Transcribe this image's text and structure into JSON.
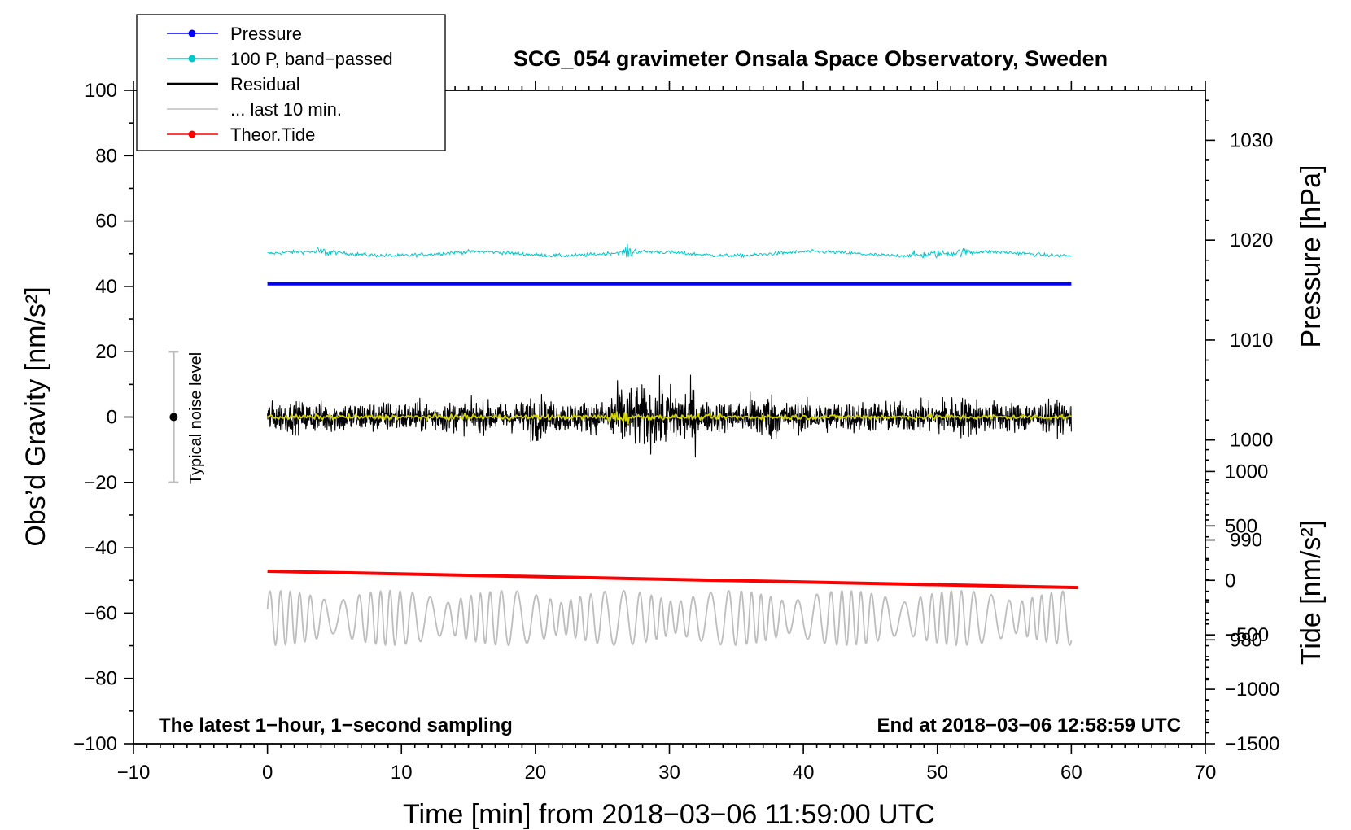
{
  "chart_data": {
    "type": "line",
    "title": "SCG_054 gravimeter Onsala Space Observatory, Sweden",
    "xlabel": "Time [min] from 2018−03−06 11:59:00 UTC",
    "ylabel_left": "Obs’d Gravity [nm/s²]",
    "ylabel_right_top": "Pressure [hPa]",
    "ylabel_right_bottom": "Tide [nm/s²]",
    "xlim": [
      -10,
      70
    ],
    "ylim": [
      -100,
      100
    ],
    "pressure_axis_range": [
      969.6,
      1035
    ],
    "tide_axis_range": [
      -1500,
      4500
    ],
    "x_ticks": [
      "−10",
      "0",
      "10",
      "20",
      "30",
      "40",
      "50",
      "60",
      "70"
    ],
    "x_tick_values": [
      -10,
      0,
      10,
      20,
      30,
      40,
      50,
      60,
      70
    ],
    "y_ticks": [
      "100",
      "80",
      "60",
      "40",
      "20",
      "0",
      "−20",
      "−40",
      "−60",
      "−80",
      "−100"
    ],
    "y_tick_values": [
      100,
      80,
      60,
      40,
      20,
      0,
      -20,
      -40,
      -60,
      -80,
      -100
    ],
    "pressure_ticks": [
      "1030",
      "1020",
      "1010",
      "1000",
      "990",
      "980"
    ],
    "pressure_tick_values": [
      1030,
      1020,
      1010,
      1000,
      990,
      980
    ],
    "tide_ticks": [
      "1000",
      "500",
      "0",
      "−500",
      "−1000",
      "−1500"
    ],
    "tide_tick_values": [
      1000,
      500,
      0,
      -500,
      -1000,
      -1500
    ],
    "legend": [
      {
        "label": "Pressure",
        "color": "#0000ff",
        "marker": true
      },
      {
        "label": "100 P, band−passed",
        "color": "#00c8c8",
        "marker": true
      },
      {
        "label": "Residual",
        "color": "#000000",
        "marker": false
      },
      {
        "label": "... last 10 min.",
        "color": "#bdbdbd",
        "marker": false
      },
      {
        "label": "Theor.Tide",
        "color": "#ff0000",
        "marker": true
      }
    ],
    "series": [
      {
        "name": "Pressure",
        "color": "#0000ff",
        "x": [
          0,
          60
        ],
        "y": [
          40.8,
          40.8
        ]
      },
      {
        "name": "100 P, band-passed",
        "color": "#00c8c8",
        "x": [
          0,
          60
        ],
        "y": [
          50,
          50
        ],
        "noise": "small oscillation about 50"
      },
      {
        "name": "Residual",
        "color": "#000000",
        "x": [
          0,
          60
        ],
        "y": [
          0,
          0
        ],
        "noise": "±10, larger bursts near 27–31 min"
      },
      {
        "name": "Residual smoothed",
        "color": "#d4d400",
        "x": [
          0,
          60
        ],
        "y": [
          0,
          0
        ]
      },
      {
        "name": "Theor.Tide",
        "color": "#ff0000",
        "x": [
          0,
          60.5
        ],
        "y": [
          -47.2,
          -52.2
        ]
      },
      {
        "name": "... last 10 min.",
        "color": "#bdbdbd",
        "x": [
          0,
          60
        ],
        "y": [
          -60,
          -62
        ],
        "noise": "oscillation between -52 and -73"
      }
    ],
    "noise_bar": {
      "x": -7,
      "center": 0,
      "low": -20,
      "high": 20,
      "label": "Typical noise level"
    },
    "annotations": {
      "left": "The latest 1−hour, 1−second sampling",
      "right": "End at 2018−03−06 12:58:59 UTC"
    },
    "grid": false,
    "legend_position": "top-left"
  }
}
